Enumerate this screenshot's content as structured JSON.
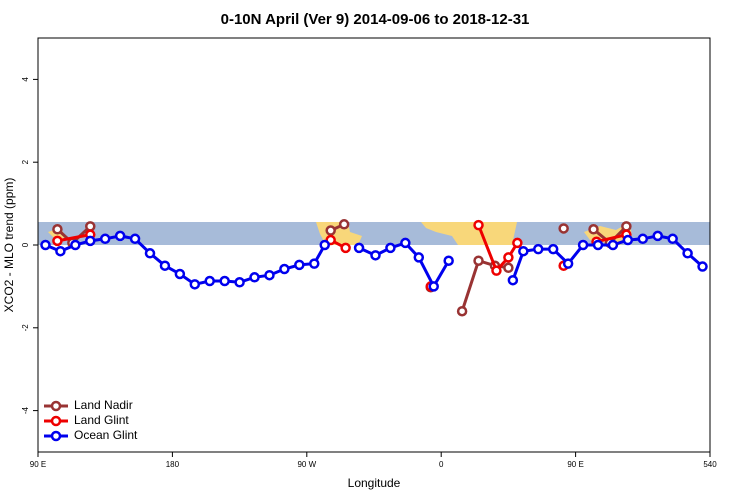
{
  "chart_data": {
    "type": "line",
    "title": "0-10N April (Ver 9)   2014-09-06 to 2018-12-31",
    "xlabel": "Longitude",
    "ylabel": "XCO2 - MLO trend (ppm)",
    "xlim": [
      90,
      540
    ],
    "ylim": [
      -5,
      5
    ],
    "xticks": [
      {
        "value": 90,
        "label": "90 E"
      },
      180,
      {
        "value": 270,
        "label": "90 W"
      },
      {
        "value": 360,
        "label": "0"
      },
      {
        "value": 450,
        "label": "90 E"
      },
      540
    ],
    "yticks": [
      -4,
      -2,
      0,
      2,
      4
    ],
    "legend": "bottom-left",
    "series": [
      {
        "name": "Land Nadir",
        "color": "#993333",
        "x": [
          103,
          113,
          125,
          null,
          286,
          295,
          null,
          353,
          null,
          374,
          385,
          396,
          405,
          null,
          442,
          null,
          462,
          473,
          484
        ],
        "values": [
          0.38,
          0.05,
          0.45,
          null,
          0.35,
          0.5,
          null,
          -1.02,
          null,
          -1.6,
          -0.38,
          -0.5,
          -0.55,
          null,
          0.4,
          null,
          0.38,
          0.05,
          0.45
        ]
      },
      {
        "name": "Land Glint",
        "color": "#ee0000",
        "x": [
          103,
          125,
          null,
          286,
          296,
          null,
          353,
          null,
          385,
          397,
          405,
          411,
          null,
          442,
          null,
          464,
          484
        ],
        "values": [
          0.1,
          0.25,
          null,
          0.12,
          -0.07,
          null,
          -1.0,
          null,
          0.48,
          -0.62,
          -0.3,
          0.05,
          null,
          -0.5,
          null,
          0.08,
          0.25
        ]
      },
      {
        "name": "Ocean Glint",
        "color": "#0000ee",
        "x": [
          95,
          105,
          115,
          125,
          135,
          145,
          155,
          165,
          175,
          185,
          195,
          205,
          215,
          225,
          235,
          245,
          255,
          265,
          275,
          282,
          null,
          305,
          316,
          326,
          336,
          345,
          355,
          365,
          null,
          408,
          415,
          425,
          435,
          445,
          455,
          465,
          475,
          485,
          495,
          505,
          515,
          525,
          535
        ],
        "values": [
          0,
          -0.15,
          0,
          0.1,
          0.15,
          0.22,
          0.15,
          -0.2,
          -0.5,
          -0.7,
          -0.95,
          -0.87,
          -0.87,
          -0.9,
          -0.78,
          -0.73,
          -0.58,
          -0.48,
          -0.45,
          0,
          null,
          -0.07,
          -0.25,
          -0.07,
          0.05,
          -0.3,
          -1.0,
          -0.38,
          null,
          -0.85,
          -0.15,
          -0.1,
          -0.1,
          -0.45,
          0,
          0,
          0,
          0.12,
          0.15,
          0.22,
          0.15,
          -0.2,
          -0.52
        ]
      }
    ]
  }
}
